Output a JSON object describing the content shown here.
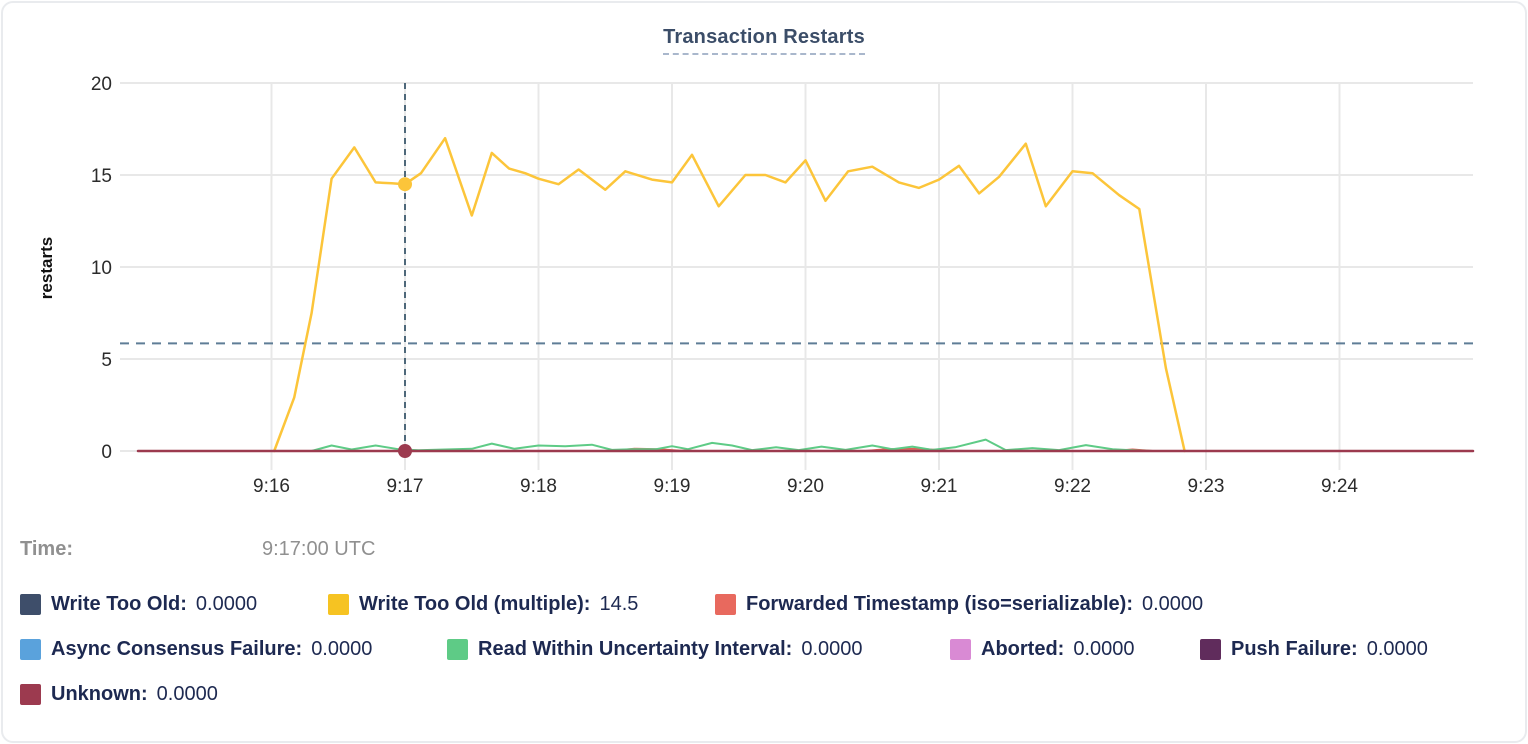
{
  "title": "Transaction Restarts",
  "time": {
    "label": "Time:",
    "value": "9:17:00 UTC"
  },
  "legend": {
    "rows": [
      [
        {
          "name": "Write Too Old",
          "value": "0.0000",
          "color": "#3e4e6a"
        },
        {
          "name": "Write Too Old (multiple)",
          "value": "14.5",
          "color": "#f6c322"
        },
        {
          "name": "Forwarded Timestamp (iso=serializable)",
          "value": "0.0000",
          "color": "#e8695e"
        }
      ],
      [
        {
          "name": "Async Consensus Failure",
          "value": "0.0000",
          "color": "#5aa2dc"
        },
        {
          "name": "Read Within Uncertainty Interval",
          "value": "0.0000",
          "color": "#5ecb86"
        },
        {
          "name": "Aborted",
          "value": "0.0000",
          "color": "#d98ad4"
        },
        {
          "name": "Push Failure",
          "value": "0.0000",
          "color": "#602c5c"
        }
      ],
      [
        {
          "name": "Unknown",
          "value": "0.0000",
          "color": "#9c3a4f"
        }
      ]
    ]
  },
  "chart_data": {
    "type": "line",
    "title": "Transaction Restarts",
    "xlabel": "",
    "ylabel": "restarts",
    "ylim": [
      0,
      20
    ],
    "yticks": [
      0,
      5,
      10,
      15,
      20
    ],
    "xticks": [
      {
        "t": 16,
        "label": "9:16"
      },
      {
        "t": 17,
        "label": "9:17"
      },
      {
        "t": 18,
        "label": "9:18"
      },
      {
        "t": 19,
        "label": "9:19"
      },
      {
        "t": 20,
        "label": "9:20"
      },
      {
        "t": 21,
        "label": "9:21"
      },
      {
        "t": 22,
        "label": "9:22"
      },
      {
        "t": 23,
        "label": "9:23"
      },
      {
        "t": 24,
        "label": "9:24"
      }
    ],
    "x_domain_minutes_after_9": [
      15,
      25
    ],
    "grid": true,
    "avg_dashed_line_value": 5.85,
    "hover": {
      "t": 17,
      "time_label": "9:17:00 UTC",
      "points": [
        {
          "series": "Write Too Old (multiple)",
          "v": 14.5
        },
        {
          "series": "Unknown",
          "v": 0
        }
      ]
    },
    "series": [
      {
        "name": "Write Too Old",
        "color": "#3e4e6a",
        "width": 1.5,
        "points": [
          [
            15,
            0
          ],
          [
            25,
            0
          ]
        ]
      },
      {
        "name": "Async Consensus Failure",
        "color": "#5aa2dc",
        "width": 1.5,
        "points": [
          [
            15,
            0
          ],
          [
            25,
            0
          ]
        ]
      },
      {
        "name": "Aborted",
        "color": "#d98ad4",
        "width": 1.5,
        "points": [
          [
            15,
            0
          ],
          [
            25,
            0
          ]
        ]
      },
      {
        "name": "Push Failure",
        "color": "#602c5c",
        "width": 1.5,
        "points": [
          [
            15,
            0
          ],
          [
            25,
            0
          ]
        ]
      },
      {
        "name": "Forwarded Timestamp (iso=serializable)",
        "color": "#dd5f56",
        "width": 2,
        "points": [
          [
            15,
            0
          ],
          [
            18.55,
            0
          ],
          [
            18.72,
            0.12
          ],
          [
            18.9,
            0.1
          ],
          [
            19.05,
            0.02
          ],
          [
            19.2,
            0
          ],
          [
            20.45,
            0
          ],
          [
            20.6,
            0.1
          ],
          [
            20.85,
            0.12
          ],
          [
            21.05,
            0.02
          ],
          [
            21.2,
            0
          ],
          [
            22.3,
            0
          ],
          [
            22.45,
            0.08
          ],
          [
            22.6,
            0
          ],
          [
            25,
            0
          ]
        ]
      },
      {
        "name": "Read Within Uncertainty Interval",
        "color": "#5ecb86",
        "width": 2,
        "points": [
          [
            16.3,
            0
          ],
          [
            16.45,
            0.3
          ],
          [
            16.6,
            0.08
          ],
          [
            16.78,
            0.3
          ],
          [
            16.95,
            0.1
          ],
          [
            17.1,
            0.04
          ],
          [
            17.3,
            0.08
          ],
          [
            17.5,
            0.12
          ],
          [
            17.65,
            0.4
          ],
          [
            17.82,
            0.12
          ],
          [
            18.0,
            0.3
          ],
          [
            18.2,
            0.26
          ],
          [
            18.4,
            0.34
          ],
          [
            18.55,
            0.06
          ],
          [
            18.7,
            0.1
          ],
          [
            18.88,
            0.1
          ],
          [
            19.0,
            0.26
          ],
          [
            19.12,
            0.1
          ],
          [
            19.3,
            0.44
          ],
          [
            19.45,
            0.3
          ],
          [
            19.6,
            0.05
          ],
          [
            19.78,
            0.2
          ],
          [
            19.95,
            0.05
          ],
          [
            20.12,
            0.24
          ],
          [
            20.3,
            0.06
          ],
          [
            20.5,
            0.3
          ],
          [
            20.65,
            0.1
          ],
          [
            20.8,
            0.24
          ],
          [
            20.95,
            0.06
          ],
          [
            21.12,
            0.2
          ],
          [
            21.35,
            0.62
          ],
          [
            21.5,
            0.05
          ],
          [
            21.7,
            0.16
          ],
          [
            21.9,
            0.05
          ],
          [
            22.1,
            0.32
          ],
          [
            22.3,
            0.1
          ],
          [
            22.5,
            0.02
          ],
          [
            22.6,
            0
          ]
        ]
      },
      {
        "name": "Write Too Old (multiple)",
        "color": "#fcc53a",
        "width": 2.5,
        "points": [
          [
            16.02,
            0
          ],
          [
            16.17,
            2.9
          ],
          [
            16.3,
            7.5
          ],
          [
            16.45,
            14.8
          ],
          [
            16.62,
            16.5
          ],
          [
            16.78,
            14.6
          ],
          [
            16.9,
            14.55
          ],
          [
            17.0,
            14.5
          ],
          [
            17.12,
            15.1
          ],
          [
            17.3,
            17.0
          ],
          [
            17.5,
            12.8
          ],
          [
            17.65,
            16.2
          ],
          [
            17.78,
            15.35
          ],
          [
            17.9,
            15.1
          ],
          [
            18.0,
            14.8
          ],
          [
            18.15,
            14.5
          ],
          [
            18.3,
            15.3
          ],
          [
            18.5,
            14.2
          ],
          [
            18.65,
            15.2
          ],
          [
            18.85,
            14.75
          ],
          [
            19.0,
            14.6
          ],
          [
            19.15,
            16.1
          ],
          [
            19.35,
            13.3
          ],
          [
            19.55,
            15.0
          ],
          [
            19.7,
            15.0
          ],
          [
            19.85,
            14.6
          ],
          [
            20.0,
            15.8
          ],
          [
            20.15,
            13.6
          ],
          [
            20.32,
            15.2
          ],
          [
            20.5,
            15.45
          ],
          [
            20.7,
            14.6
          ],
          [
            20.85,
            14.3
          ],
          [
            21.0,
            14.75
          ],
          [
            21.15,
            15.5
          ],
          [
            21.3,
            14.0
          ],
          [
            21.45,
            14.9
          ],
          [
            21.65,
            16.7
          ],
          [
            21.8,
            13.3
          ],
          [
            22.0,
            15.2
          ],
          [
            22.15,
            15.1
          ],
          [
            22.35,
            13.9
          ],
          [
            22.5,
            13.15
          ],
          [
            22.7,
            4.5
          ],
          [
            22.84,
            0
          ]
        ]
      },
      {
        "name": "Unknown",
        "color": "#9c3a4f",
        "width": 2.5,
        "points": [
          [
            15,
            0
          ],
          [
            25,
            0
          ]
        ]
      }
    ],
    "colors": {
      "grid": "#e8e8e8",
      "tick_text": "#2b2b2b",
      "avg_dashed_line": "#5f7d96",
      "hover_line": "#3d5a6e"
    }
  }
}
